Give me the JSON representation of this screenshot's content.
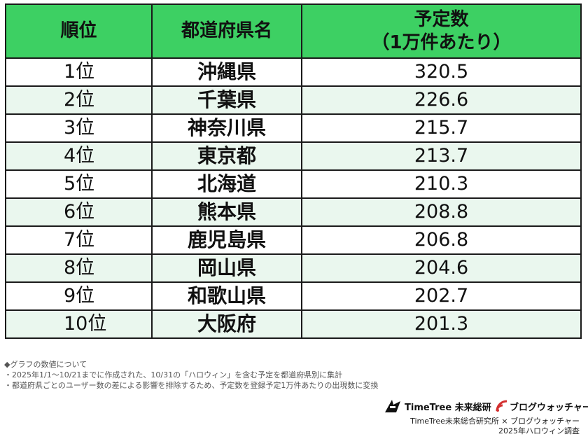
{
  "chart_data": {
    "type": "table",
    "columns": [
      "順位",
      "都道府県名",
      "予定数",
      "（1万件あたり）"
    ],
    "rows": [
      {
        "rank": "1位",
        "prefecture": "沖縄県",
        "value": "320.5"
      },
      {
        "rank": "2位",
        "prefecture": "千葉県",
        "value": "226.6"
      },
      {
        "rank": "3位",
        "prefecture": "神奈川県",
        "value": "215.7"
      },
      {
        "rank": "4位",
        "prefecture": "東京都",
        "value": "213.7"
      },
      {
        "rank": "5位",
        "prefecture": "北海道",
        "value": "210.3"
      },
      {
        "rank": "6位",
        "prefecture": "熊本県",
        "value": "208.8"
      },
      {
        "rank": "7位",
        "prefecture": "鹿児島県",
        "value": "206.8"
      },
      {
        "rank": "8位",
        "prefecture": "岡山県",
        "value": "204.6"
      },
      {
        "rank": "9位",
        "prefecture": "和歌山県",
        "value": "202.7"
      },
      {
        "rank": "10位",
        "prefecture": "大阪府",
        "value": "201.3"
      }
    ]
  },
  "notes": [
    "◆グラフの数値について",
    "・2025年1/1～10/21までに作成された、10/31の「ハロウィン」を含む予定を都道府県別に集計",
    "・都道府県ごとのユーザー数の差による影響を排除するため、予定数を登録予定1万件あたりの出現数に変換"
  ],
  "logos": {
    "timetree": "TimeTree 未来総研",
    "blogwatcher": "ブログウォッチャー"
  },
  "credit": {
    "line1": "TimeTree未来総合研究所 × ブログウォッチャー",
    "line2": "2025年ハロウィン調査"
  },
  "colors": {
    "header_bg": "#3dd063",
    "stripe_bg": "#eaf7ee",
    "blogwatcher_red": "#d32f2f"
  }
}
